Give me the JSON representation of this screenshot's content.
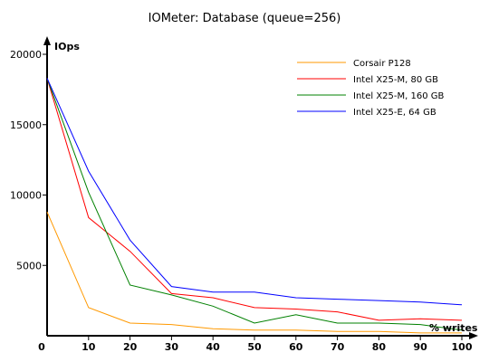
{
  "chart_data": {
    "type": "line",
    "title": "IOMeter: Database (queue=256)",
    "xlabel": "% writes",
    "ylabel": "IOps",
    "x": [
      0,
      10,
      20,
      30,
      40,
      50,
      60,
      70,
      80,
      90,
      100
    ],
    "xlim": [
      0,
      100
    ],
    "ylim": [
      0,
      20000
    ],
    "xticks": [
      "0",
      "10",
      "20",
      "30",
      "40",
      "50",
      "60",
      "70",
      "80",
      "90",
      "100"
    ],
    "yticks": [
      "5000",
      "10000",
      "15000",
      "20000"
    ],
    "grid": false,
    "legend_position": "top-right",
    "series": [
      {
        "name": "Corsair P128",
        "color": "#ff9900",
        "values": [
          8800,
          2000,
          900,
          800,
          500,
          400,
          400,
          300,
          300,
          200,
          200
        ]
      },
      {
        "name": "Intel X25-M, 80 GB",
        "color": "#ff0000",
        "values": [
          18300,
          8400,
          6000,
          3000,
          2700,
          2000,
          1900,
          1700,
          1100,
          1200,
          1100
        ]
      },
      {
        "name": "Intel X25-M, 160 GB",
        "color": "#008000",
        "values": [
          18300,
          10200,
          3600,
          2900,
          2100,
          900,
          1500,
          900,
          900,
          800,
          400
        ]
      },
      {
        "name": "Intel X25-E, 64 GB",
        "color": "#0000ff",
        "values": [
          18300,
          11700,
          6800,
          3500,
          3100,
          3100,
          2700,
          2600,
          2500,
          2400,
          2200
        ]
      }
    ]
  }
}
